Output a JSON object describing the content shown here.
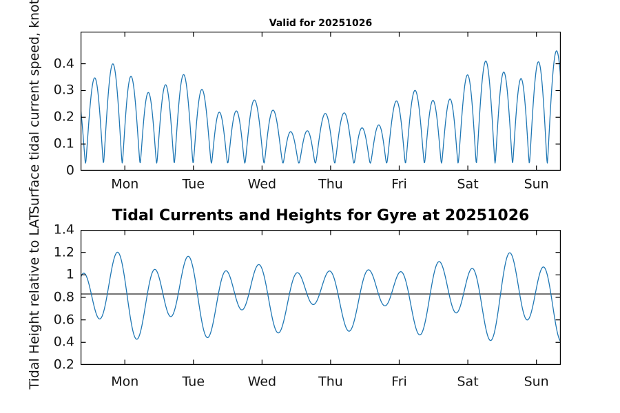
{
  "page": {
    "background": "#ffffff"
  },
  "chart_data": [
    {
      "type": "line",
      "title": "Valid for 20251026",
      "ylabel": "Surface tidal current speed, knots",
      "xlabel": "",
      "series_name": "surface tidal current speed",
      "units": "knots",
      "grid": false,
      "legend": null,
      "line_color": "#1f77b4",
      "axes_color": "#000000",
      "x_tick_labels": [
        "Mon",
        "Tue",
        "Wed",
        "Thu",
        "Fri",
        "Sat",
        "Sun"
      ],
      "x_tick_days": [
        0.645,
        1.645,
        2.645,
        3.645,
        4.645,
        5.645,
        6.645
      ],
      "xlim_days": [
        0,
        7
      ],
      "y_tick_labels": [
        "0",
        "0.1",
        "0.2",
        "0.3",
        "0.4"
      ],
      "y_tick_values": [
        0,
        0.1,
        0.2,
        0.3,
        0.4
      ],
      "ylim": [
        0,
        0.52
      ],
      "peaks": {
        "t_days": [
          0.18,
          0.44,
          0.7,
          0.96,
          1.22,
          1.48,
          1.74,
          2.0,
          2.25,
          2.51,
          2.77,
          3.03,
          3.29,
          3.55,
          3.81,
          4.07,
          4.33,
          4.58,
          4.84,
          5.1,
          5.36,
          5.62,
          5.88,
          6.14,
          6.4,
          6.66,
          6.91
        ],
        "values": [
          0.29,
          0.36,
          0.4,
          0.31,
          0.23,
          0.29,
          0.33,
          0.26,
          0.18,
          0.23,
          0.27,
          0.23,
          0.15,
          0.19,
          0.25,
          0.24,
          0.18,
          0.22,
          0.28,
          0.31,
          0.29,
          0.31,
          0.36,
          0.4,
          0.4,
          0.41,
          0.45
        ],
        "trough_range": [
          0.01,
          0.05
        ]
      },
      "model": {
        "base": 0,
        "envelope": {
          "base": 0.245,
          "amp": 0.1,
          "period": 6.2,
          "phase": 0.5,
          "trend": 0.008
        },
        "m2": {
          "period": 0.5175,
          "phase": 0.47
        },
        "k1": {
          "amp": 0.05,
          "period": 0.9973,
          "phase": 0.47
        },
        "abs": true,
        "floor": 0.0008
      }
    },
    {
      "type": "line",
      "title": "Tidal Currents and Heights for Gyre at 20251026",
      "ylabel": "Tidal Height relative to LAT",
      "xlabel": "",
      "series_name": "tidal height",
      "units": "relative to LAT",
      "grid": false,
      "legend": null,
      "line_color": "#1f77b4",
      "axes_color": "#000000",
      "x_tick_labels": [
        "Mon",
        "Tue",
        "Wed",
        "Thu",
        "Fri",
        "Sat",
        "Sun"
      ],
      "x_tick_days": [
        0.645,
        1.645,
        2.645,
        3.645,
        4.645,
        5.645,
        6.645
      ],
      "xlim_days": [
        0,
        7
      ],
      "y_tick_labels": [
        "0.2",
        "0.4",
        "0.6",
        "0.8",
        "1",
        "1.2",
        "1.4"
      ],
      "y_tick_values": [
        0.2,
        0.4,
        0.6,
        0.8,
        1,
        1.2,
        1.4
      ],
      "ylim": [
        0.2,
        1.4
      ],
      "reference_line": {
        "value": 0.83,
        "color": "#000000",
        "name": "mean tide level line"
      },
      "highs": {
        "t_days": [
          0.06,
          0.55,
          1.1,
          1.6,
          2.12,
          2.63,
          3.15,
          3.67,
          4.19,
          4.71,
          5.22,
          5.74,
          6.26,
          6.8
        ],
        "values": [
          1.02,
          1.2,
          0.97,
          1.15,
          0.93,
          1.1,
          0.95,
          1.07,
          1.01,
          1.09,
          1.1,
          1.15,
          1.22,
          1.23
        ]
      },
      "lows": {
        "t_days": [
          0.28,
          0.83,
          1.33,
          1.86,
          2.38,
          2.89,
          3.41,
          3.93,
          4.45,
          4.97,
          5.48,
          6.0,
          6.52
        ],
        "values": [
          0.59,
          0.4,
          0.65,
          0.46,
          0.72,
          0.51,
          0.76,
          0.56,
          0.73,
          0.61,
          0.7,
          0.62,
          0.44
        ]
      },
      "model": {
        "base": 0.82,
        "envelope": {
          "base": 0.24,
          "amp": 0.055,
          "period": 6.2,
          "phase": 0.7,
          "trend": 0.004
        },
        "m2": {
          "period": 0.5175,
          "phase": 0.55
        },
        "k1": {
          "amp": 0.12,
          "period": 0.9973,
          "phase": 0.42
        },
        "abs": false
      }
    }
  ]
}
